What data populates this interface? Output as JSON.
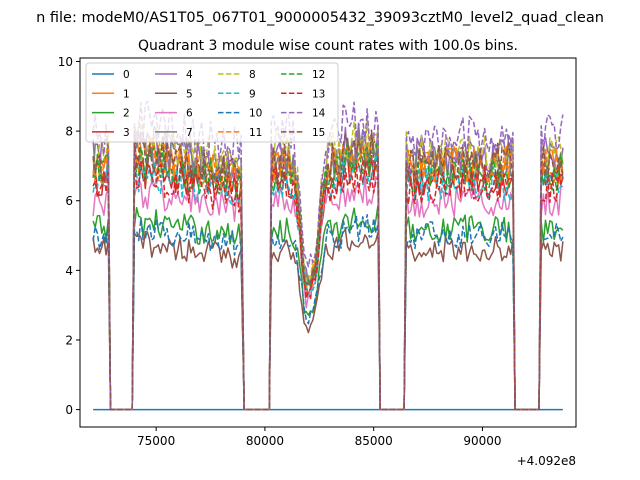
{
  "chart_data": {
    "type": "line",
    "suptitle": "n file: modeM0/AS1T05_067T01_9000005432_39093cztM0_level2_quad_clean",
    "title": "Quadrant 3 module wise count rates with 100.0s bins.",
    "xlabel": "",
    "ylabel": "",
    "x_offset_label": "+4.092e8",
    "xlim": [
      71500,
      94300
    ],
    "ylim": [
      -0.5,
      10.1
    ],
    "x_ticks": [
      75000,
      80000,
      85000,
      90000
    ],
    "x_tick_labels": [
      "75000",
      "80000",
      "85000",
      "90000"
    ],
    "y_ticks": [
      0,
      2,
      4,
      6,
      8,
      10
    ],
    "y_tick_labels": [
      "0",
      "2",
      "4",
      "6",
      "8",
      "10"
    ],
    "legend_position": "top-left",
    "legend_columns": 4,
    "segments": [
      {
        "start": 72100,
        "end": 72800
      },
      {
        "start": 74000,
        "end": 78950
      },
      {
        "start": 80300,
        "end": 85200
      },
      {
        "start": 86500,
        "end": 91400
      },
      {
        "start": 92700,
        "end": 93700
      }
    ],
    "gaps": [
      {
        "start": 72800,
        "end": 74000
      },
      {
        "start": 78950,
        "end": 80300
      },
      {
        "start": 85200,
        "end": 86500
      },
      {
        "start": 91400,
        "end": 92700
      }
    ],
    "series": [
      {
        "name": "0",
        "color": "#1f77b4",
        "dash": "solid",
        "level": 0.0
      },
      {
        "name": "1",
        "color": "#ff7f0e",
        "dash": "solid",
        "level": 7.0
      },
      {
        "name": "2",
        "color": "#2ca02c",
        "dash": "solid",
        "level": 5.2
      },
      {
        "name": "3",
        "color": "#d62728",
        "dash": "solid",
        "level": 6.6
      },
      {
        "name": "4",
        "color": "#9467bd",
        "dash": "solid",
        "level": 7.3
      },
      {
        "name": "5",
        "color": "#8c564b",
        "dash": "solid",
        "level": 4.6
      },
      {
        "name": "6",
        "color": "#e377c2",
        "dash": "solid",
        "level": 6.0
      },
      {
        "name": "7",
        "color": "#7f7f7f",
        "dash": "solid",
        "level": 7.1
      },
      {
        "name": "8",
        "color": "#bcbd22",
        "dash": "dashed",
        "level": 7.4
      },
      {
        "name": "9",
        "color": "#17becf",
        "dash": "dashed",
        "level": 6.5
      },
      {
        "name": "10",
        "color": "#1f77b4",
        "dash": "dashed",
        "level": 5.0
      },
      {
        "name": "11",
        "color": "#ff7f0e",
        "dash": "dashed",
        "level": 7.0
      },
      {
        "name": "12",
        "color": "#2ca02c",
        "dash": "dashed",
        "level": 6.8
      },
      {
        "name": "13",
        "color": "#d62728",
        "dash": "dashed",
        "level": 6.4
      },
      {
        "name": "14",
        "color": "#9467bd",
        "dash": "dashed",
        "level": 7.9
      },
      {
        "name": "15",
        "color": "#8c564b",
        "dash": "dashed",
        "level": 7.1
      }
    ]
  }
}
